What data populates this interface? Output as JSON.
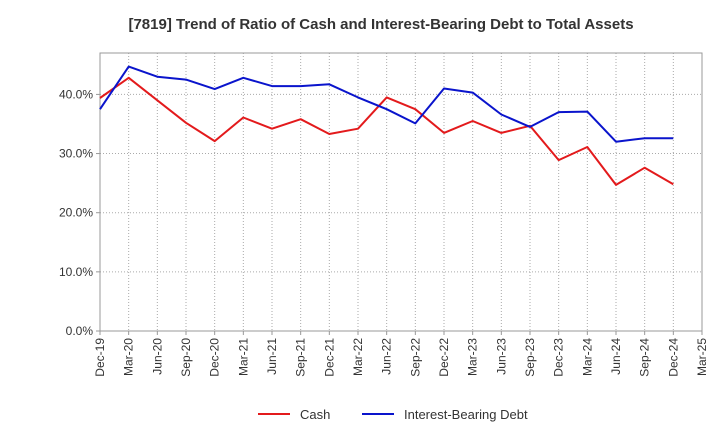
{
  "chart_data": {
    "type": "line",
    "title": "[7819]  Trend of Ratio of Cash and Interest-Bearing Debt to Total Assets",
    "xlabel": "",
    "ylabel": "",
    "x": [
      "Dec-19",
      "Mar-20",
      "Jun-20",
      "Sep-20",
      "Dec-20",
      "Mar-21",
      "Jun-21",
      "Sep-21",
      "Dec-21",
      "Mar-22",
      "Jun-22",
      "Sep-22",
      "Dec-22",
      "Mar-23",
      "Jun-23",
      "Sep-23",
      "Dec-23",
      "Mar-24",
      "Jun-24",
      "Sep-24",
      "Dec-24",
      "Mar-25"
    ],
    "ylim": [
      0,
      47
    ],
    "yticks": [
      0,
      10,
      20,
      30,
      40
    ],
    "ytick_labels": [
      "0.0%",
      "10.0%",
      "20.0%",
      "30.0%",
      "40.0%"
    ],
    "grid": true,
    "legend_position": "bottom",
    "series": [
      {
        "name": "Cash",
        "color": "#e31a1c",
        "values": [
          39.4,
          42.8,
          39.0,
          35.2,
          32.1,
          36.1,
          34.2,
          35.8,
          33.3,
          34.2,
          39.5,
          37.5,
          33.5,
          35.5,
          33.5,
          34.7,
          28.9,
          31.1,
          24.7,
          27.6,
          24.8,
          null
        ]
      },
      {
        "name": "Interest-Bearing Debt",
        "color": "#0a14cc",
        "values": [
          37.5,
          44.7,
          43.0,
          42.5,
          40.9,
          42.8,
          41.4,
          41.4,
          41.7,
          39.5,
          37.5,
          35.1,
          41.0,
          40.3,
          36.6,
          34.5,
          37.0,
          37.1,
          32.0,
          32.6,
          32.6,
          null
        ]
      }
    ]
  }
}
